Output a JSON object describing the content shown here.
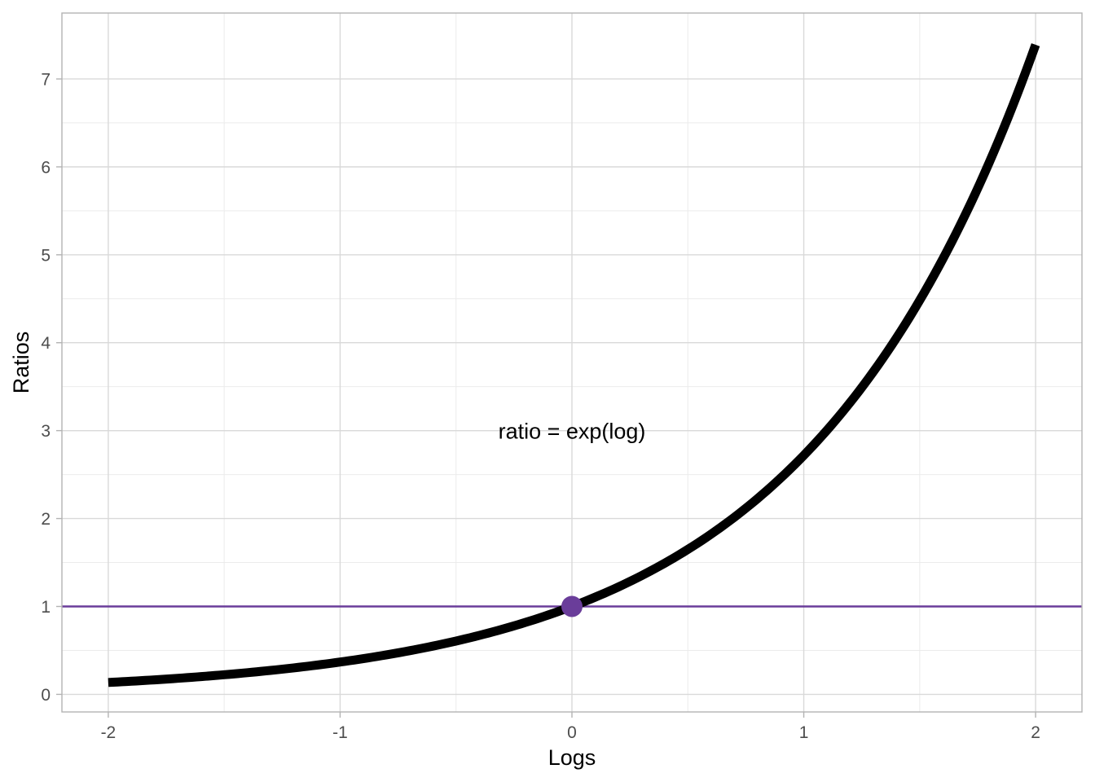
{
  "chart_data": {
    "type": "line",
    "title": "",
    "xlabel": "Logs",
    "ylabel": "Ratios",
    "xlim": [
      -2.2,
      2.2
    ],
    "ylim": [
      -0.2,
      7.75
    ],
    "x_ticks": [
      -2,
      -1,
      0,
      1,
      2
    ],
    "x_tick_labels": [
      "-2",
      "-1",
      "0",
      "1",
      "2"
    ],
    "y_ticks": [
      0,
      1,
      2,
      3,
      4,
      5,
      6,
      7
    ],
    "y_tick_labels": [
      "0",
      "1",
      "2",
      "3",
      "4",
      "5",
      "6",
      "7"
    ],
    "grid": true,
    "series": [
      {
        "function": "exp",
        "color": "#000000",
        "x": [
          -2.0,
          -1.8,
          -1.6,
          -1.4,
          -1.2,
          -1.0,
          -0.8,
          -0.6,
          -0.4,
          -0.2,
          0.0,
          0.2,
          0.4,
          0.6,
          0.8,
          1.0,
          1.2,
          1.4,
          1.6,
          1.8,
          2.0
        ],
        "y": [
          0.135,
          0.165,
          0.202,
          0.247,
          0.301,
          0.368,
          0.449,
          0.549,
          0.67,
          0.819,
          1.0,
          1.221,
          1.492,
          1.822,
          2.226,
          2.718,
          3.32,
          4.055,
          4.953,
          6.05,
          7.389
        ]
      }
    ],
    "hlines": [
      {
        "y": 1,
        "color": "#6a3d9a"
      }
    ],
    "points": [
      {
        "x": 0,
        "y": 1,
        "color": "#6a3d9a"
      }
    ],
    "annotations": [
      {
        "text": "ratio = exp(log)",
        "x": 0,
        "y": 3
      }
    ]
  }
}
